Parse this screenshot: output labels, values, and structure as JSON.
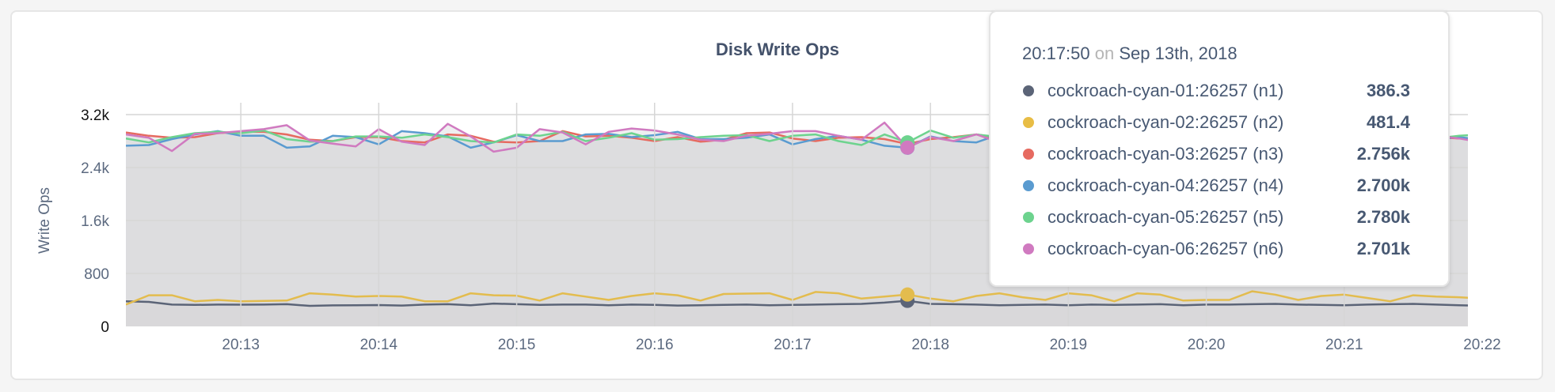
{
  "chart_data": {
    "type": "line",
    "title": "Disk Write Ops",
    "ylabel": "Write Ops",
    "xlabel": "",
    "ylim": [
      0,
      3200
    ],
    "yticks": [
      "0",
      "800",
      "1.6k",
      "2.4k",
      "3.2k"
    ],
    "ytick_values": [
      0,
      800,
      1600,
      2400,
      3200
    ],
    "xticks": [
      "20:13",
      "20:14",
      "20:15",
      "20:16",
      "20:17",
      "20:18",
      "20:19",
      "20:20",
      "20:21",
      "20:22"
    ],
    "grid": true,
    "area_fill": true,
    "x": [
      "20:12:10",
      "20:12:20",
      "20:12:30",
      "20:12:40",
      "20:12:50",
      "20:13:00",
      "20:13:10",
      "20:13:20",
      "20:13:30",
      "20:13:40",
      "20:13:50",
      "20:14:00",
      "20:14:10",
      "20:14:20",
      "20:14:30",
      "20:14:40",
      "20:14:50",
      "20:15:00",
      "20:15:10",
      "20:15:20",
      "20:15:30",
      "20:15:40",
      "20:15:50",
      "20:16:00",
      "20:16:10",
      "20:16:20",
      "20:16:30",
      "20:16:40",
      "20:16:50",
      "20:17:00",
      "20:17:10",
      "20:17:20",
      "20:17:30",
      "20:17:40",
      "20:17:50",
      "20:18:00",
      "20:18:10",
      "20:18:20",
      "20:18:30",
      "20:18:40",
      "20:18:50",
      "20:19:00",
      "20:19:10",
      "20:19:20",
      "20:19:30",
      "20:19:40",
      "20:19:50",
      "20:20:00",
      "20:20:10",
      "20:20:20",
      "20:20:30",
      "20:20:40",
      "20:20:50",
      "20:21:00",
      "20:21:10",
      "20:21:20",
      "20:21:30",
      "20:21:40",
      "20:21:50",
      "20:22:00"
    ],
    "series": [
      {
        "name": "cockroach-cyan-01:26257 (n1)",
        "color": "#5b6477",
        "values": [
          380,
          370,
          330,
          325,
          330,
          328,
          330,
          335,
          310,
          318,
          320,
          322,
          315,
          330,
          335,
          320,
          345,
          335,
          325,
          330,
          330,
          320,
          330,
          325,
          315,
          320,
          325,
          330,
          320,
          325,
          330,
          335,
          340,
          360,
          386.3,
          340,
          335,
          330,
          320,
          325,
          330,
          320,
          330,
          325,
          330,
          335,
          320,
          330,
          330,
          335,
          340,
          330,
          325,
          320,
          330,
          335,
          340,
          330,
          320,
          310
        ]
      },
      {
        "name": "cockroach-cyan-02:26257 (n2)",
        "color": "#e3bc4e",
        "values": [
          330,
          470,
          470,
          380,
          400,
          380,
          385,
          390,
          500,
          480,
          450,
          460,
          450,
          380,
          380,
          500,
          470,
          465,
          390,
          500,
          450,
          400,
          460,
          500,
          470,
          390,
          490,
          495,
          500,
          400,
          520,
          500,
          420,
          450,
          481.4,
          420,
          380,
          460,
          500,
          440,
          400,
          500,
          470,
          380,
          500,
          480,
          390,
          400,
          400,
          530,
          480,
          400,
          460,
          480,
          430,
          380,
          470,
          450,
          440,
          420
        ]
      },
      {
        "name": "cockroach-cyan-03:26257 (n3)",
        "color": "#e66a60",
        "values": [
          2930,
          2880,
          2850,
          2860,
          2920,
          2940,
          2940,
          2900,
          2820,
          2800,
          2860,
          2860,
          2800,
          2780,
          2900,
          2880,
          2790,
          2780,
          2800,
          2950,
          2870,
          2880,
          2850,
          2800,
          2860,
          2790,
          2820,
          2920,
          2930,
          2840,
          2800,
          2850,
          2860,
          2830,
          2756,
          2830,
          2860,
          2900,
          2850,
          2880,
          2840,
          2820,
          2860,
          2900,
          2850,
          2780,
          2840,
          2880,
          2850,
          2830,
          2860,
          2900,
          2840,
          2880,
          2850,
          2820,
          2870,
          2860,
          2840,
          2850
        ]
      },
      {
        "name": "cockroach-cyan-04:26257 (n4)",
        "color": "#5a9bd0",
        "values": [
          2730,
          2740,
          2830,
          2900,
          2950,
          2880,
          2880,
          2700,
          2720,
          2880,
          2860,
          2750,
          2950,
          2920,
          2870,
          2700,
          2780,
          2890,
          2800,
          2800,
          2900,
          2910,
          2860,
          2890,
          2940,
          2830,
          2830,
          2850,
          2900,
          2750,
          2830,
          2880,
          2820,
          2730,
          2700,
          2870,
          2800,
          2780,
          2900,
          2860,
          2760,
          2820,
          2880,
          2850,
          2780,
          2840,
          2860,
          2800,
          2760,
          2880,
          2900,
          2820,
          2790,
          2850,
          2880,
          2810,
          2850,
          2830,
          2860,
          2820
        ]
      },
      {
        "name": "cockroach-cyan-05:26257 (n5)",
        "color": "#6dd38e",
        "values": [
          2840,
          2780,
          2860,
          2920,
          2940,
          2920,
          2960,
          2830,
          2790,
          2800,
          2870,
          2870,
          2850,
          2900,
          2860,
          2800,
          2780,
          2900,
          2880,
          2940,
          2800,
          2850,
          2920,
          2820,
          2830,
          2860,
          2880,
          2890,
          2800,
          2880,
          2900,
          2800,
          2740,
          2900,
          2780,
          2960,
          2850,
          2900,
          2860,
          2880,
          2900,
          2840,
          2860,
          2820,
          2880,
          2900,
          2820,
          2860,
          2880,
          2840,
          2880,
          2860,
          2820,
          2900,
          2880,
          2850,
          2860,
          2840,
          2880,
          2900
        ]
      },
      {
        "name": "cockroach-cyan-06:26257 (n6)",
        "color": "#d07ac0",
        "values": [
          2900,
          2850,
          2650,
          2910,
          2920,
          2950,
          2980,
          3040,
          2810,
          2760,
          2720,
          2980,
          2790,
          2740,
          3060,
          2870,
          2640,
          2700,
          2980,
          2930,
          2750,
          2940,
          2990,
          2960,
          2900,
          2820,
          2800,
          2880,
          2910,
          2950,
          2950,
          2880,
          2820,
          3080,
          2701,
          2860,
          2800,
          2900,
          2780,
          2830,
          2880,
          2850,
          2800,
          2900,
          2860,
          2830,
          2880,
          2800,
          2850,
          2840,
          2900,
          2870,
          2830,
          2880,
          2850,
          2800,
          2860,
          2880,
          2840,
          2780
        ]
      }
    ],
    "hover_index": 34
  },
  "tooltip": {
    "time": "20:17:50",
    "on": "on",
    "date": "Sep 13th, 2018",
    "rows": [
      {
        "name": "cockroach-cyan-01:26257 (n1)",
        "value": "386.3",
        "color": "#5b6477"
      },
      {
        "name": "cockroach-cyan-02:26257 (n2)",
        "value": "481.4",
        "color": "#e8bd45"
      },
      {
        "name": "cockroach-cyan-03:26257 (n3)",
        "value": "2.756k",
        "color": "#e66a60"
      },
      {
        "name": "cockroach-cyan-04:26257 (n4)",
        "value": "2.700k",
        "color": "#5a9bd0"
      },
      {
        "name": "cockroach-cyan-05:26257 (n5)",
        "value": "2.780k",
        "color": "#6dd38e"
      },
      {
        "name": "cockroach-cyan-06:26257 (n6)",
        "value": "2.701k",
        "color": "#d07ac0"
      }
    ]
  }
}
